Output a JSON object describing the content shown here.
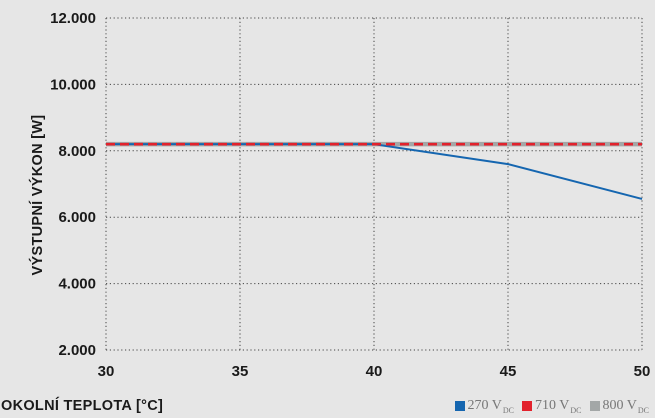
{
  "chart_data": {
    "type": "line",
    "xlabel": "OKOLNÍ TEPLOTA [°C]",
    "ylabel": "VÝSTUPNÍ VÝKON [W]",
    "xlim": [
      30,
      50
    ],
    "ylim": [
      2000,
      12000
    ],
    "x_ticks": [
      30,
      35,
      40,
      45,
      50
    ],
    "x_tick_labels": [
      "30",
      "35",
      "40",
      "45",
      "50"
    ],
    "y_ticks": [
      2000,
      4000,
      6000,
      8000,
      10000,
      12000
    ],
    "y_tick_labels": [
      "2.000",
      "4.000",
      "6.000",
      "8.000",
      "10.000",
      "12.000"
    ],
    "grid": true,
    "legend_position": "bottom-right",
    "series": [
      {
        "name": "270",
        "subscript": "DC",
        "unit": "V",
        "color": "#1566b0",
        "style": "solid",
        "x": [
          30,
          40,
          45,
          50
        ],
        "y": [
          8200,
          8200,
          7600,
          6550
        ]
      },
      {
        "name": "710",
        "subscript": "DC",
        "unit": "V",
        "color": "#e2212c",
        "style": "dashed",
        "x": [
          30,
          50
        ],
        "y": [
          8200,
          8200
        ]
      },
      {
        "name": "800",
        "subscript": "DC",
        "unit": "V",
        "color": "#a3a7a7",
        "style": "solid",
        "x": [
          30,
          50
        ],
        "y": [
          8200,
          8200
        ]
      }
    ]
  }
}
